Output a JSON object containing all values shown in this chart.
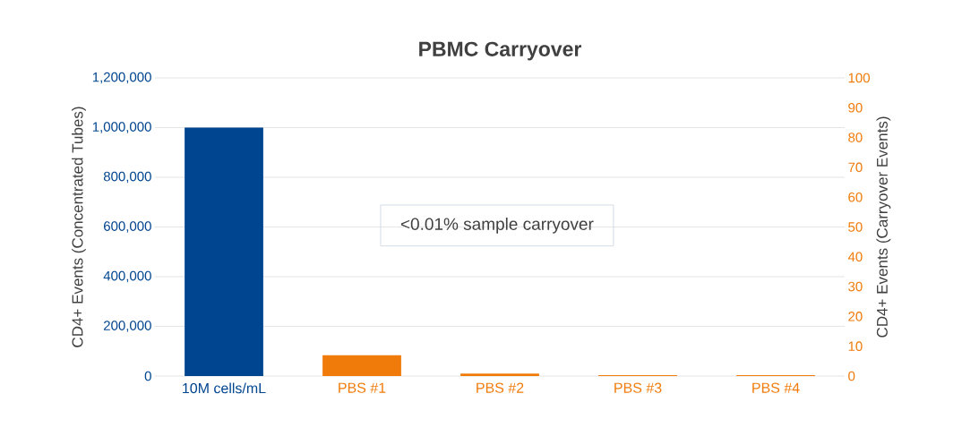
{
  "chart_data": {
    "type": "bar",
    "title": "PBMC Carryover",
    "categories": [
      "10M cells/mL",
      "PBS #1",
      "PBS #2",
      "PBS #3",
      "PBS #4"
    ],
    "series": [
      {
        "color": "#00458f",
        "values": [
          1000000,
          null,
          null,
          null,
          null
        ]
      },
      {
        "color": "#f07b0a",
        "axis": "y2",
        "values": [
          null,
          7,
          0.8,
          0.3,
          0.3
        ]
      }
    ],
    "ylabel": "CD4+ Events (Concentrated Tubes)",
    "y2label": "CD4+ Events (Carryover Events)",
    "ylim": [
      0,
      1200000
    ],
    "yticks": [
      0,
      {
        "value": 200000,
        "label": "200,000"
      },
      {
        "value": 400000,
        "label": "400,000"
      },
      {
        "value": 600000,
        "label": "600,000"
      },
      {
        "value": 800000,
        "label": "800,000"
      },
      {
        "value": 1000000,
        "label": "1,000,000"
      },
      {
        "value": 1200000,
        "label": "1,200,000"
      }
    ],
    "y2lim": [
      0,
      100
    ],
    "y2ticks": [
      0,
      10,
      20,
      30,
      40,
      50,
      60,
      70,
      80,
      90,
      100
    ],
    "grid": "y",
    "annotations": [
      "<0.01% sample carryover"
    ]
  }
}
